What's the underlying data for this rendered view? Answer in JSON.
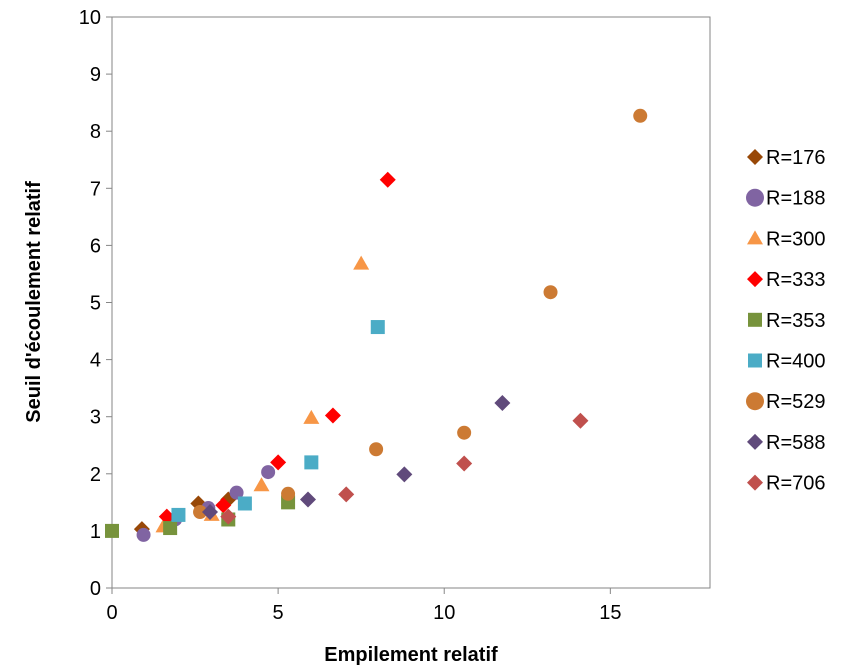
{
  "chart_data": {
    "type": "scatter",
    "title": "",
    "xlabel": "Empilement relatif",
    "ylabel": "Seuil d'écoulement relatif",
    "xlim": [
      0,
      18
    ],
    "ylim": [
      0,
      10
    ],
    "xticks": [
      0,
      5,
      10,
      15
    ],
    "yticks": [
      0,
      1,
      2,
      3,
      4,
      5,
      6,
      7,
      8,
      9,
      10
    ],
    "grid": false,
    "legend_position": "right",
    "series": [
      {
        "name": "R=176",
        "marker": "diamond",
        "color": "#984807",
        "points": [
          [
            0.9,
            1.03
          ],
          [
            2.6,
            1.48
          ],
          [
            3.5,
            1.55
          ]
        ]
      },
      {
        "name": "R=188",
        "marker": "circle",
        "color": "#8064a2",
        "points": [
          [
            0.95,
            0.93
          ],
          [
            1.9,
            1.2
          ],
          [
            2.9,
            1.4
          ],
          [
            3.75,
            1.67
          ],
          [
            4.7,
            2.03
          ]
        ]
      },
      {
        "name": "R=300",
        "marker": "triangle",
        "color": "#f79646",
        "points": [
          [
            1.55,
            1.08
          ],
          [
            3.0,
            1.28
          ],
          [
            4.5,
            1.8
          ],
          [
            6.0,
            2.98
          ],
          [
            7.5,
            5.68
          ]
        ]
      },
      {
        "name": "R=333",
        "marker": "diamond",
        "color": "#ff0000",
        "points": [
          [
            1.65,
            1.25
          ],
          [
            3.35,
            1.45
          ],
          [
            5.0,
            2.2
          ],
          [
            6.65,
            3.02
          ],
          [
            8.3,
            7.15
          ]
        ]
      },
      {
        "name": "R=353",
        "marker": "square",
        "color": "#77933c",
        "points": [
          [
            0,
            1.0
          ],
          [
            1.75,
            1.05
          ],
          [
            3.5,
            1.2
          ],
          [
            5.3,
            1.5
          ]
        ]
      },
      {
        "name": "R=400",
        "marker": "square",
        "color": "#4bacc6",
        "points": [
          [
            2.0,
            1.28
          ],
          [
            4.0,
            1.48
          ],
          [
            6.0,
            2.2
          ],
          [
            8.0,
            4.57
          ]
        ]
      },
      {
        "name": "R=529",
        "marker": "circle",
        "color": "#cc7a33",
        "points": [
          [
            2.65,
            1.33
          ],
          [
            5.3,
            1.65
          ],
          [
            7.95,
            2.43
          ],
          [
            10.6,
            2.72
          ],
          [
            13.2,
            5.18
          ],
          [
            15.9,
            8.27
          ]
        ]
      },
      {
        "name": "R=588",
        "marker": "diamond",
        "color": "#604a7b",
        "points": [
          [
            2.95,
            1.33
          ],
          [
            5.9,
            1.55
          ],
          [
            8.8,
            1.99
          ],
          [
            11.75,
            3.24
          ]
        ]
      },
      {
        "name": "R=706",
        "marker": "diamond",
        "color": "#c0504d",
        "points": [
          [
            3.5,
            1.25
          ],
          [
            7.05,
            1.64
          ],
          [
            10.6,
            2.18
          ],
          [
            14.1,
            2.93
          ]
        ]
      }
    ]
  }
}
